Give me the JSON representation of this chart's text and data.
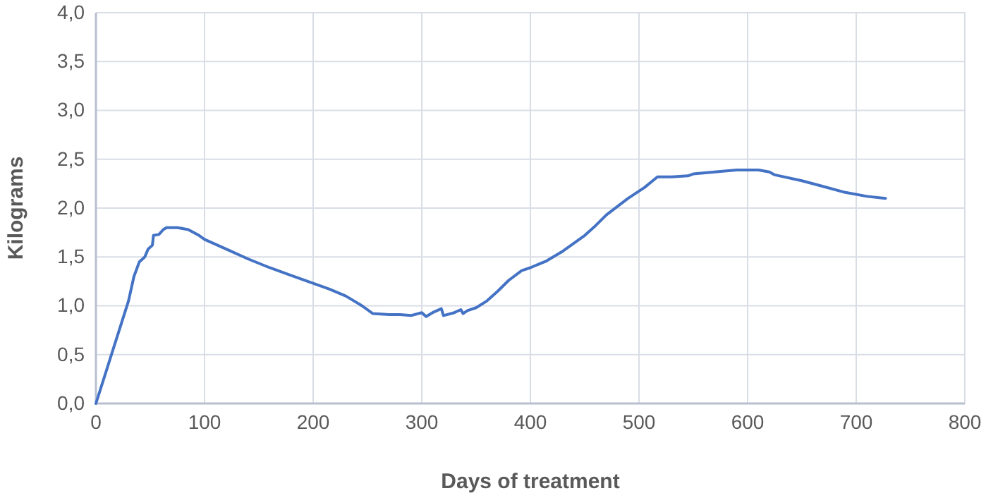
{
  "chart_data": {
    "type": "line",
    "xlabel": "Days of treatment",
    "ylabel": "Kilograms",
    "grid": true,
    "line_style": "solid",
    "marker": "none",
    "xlim": [
      0,
      800
    ],
    "xticks": [
      0,
      100,
      200,
      300,
      400,
      500,
      600,
      700,
      800
    ],
    "ylim": [
      0,
      4
    ],
    "yticks": [
      {
        "value": 0,
        "label": "0,0"
      },
      {
        "value": 0.5,
        "label": "0,5"
      },
      {
        "value": 1,
        "label": "1,0"
      },
      {
        "value": 1.5,
        "label": "1,5"
      },
      {
        "value": 2,
        "label": "2,0"
      },
      {
        "value": 2.5,
        "label": "2,5"
      },
      {
        "value": 3,
        "label": "3,0"
      },
      {
        "value": 3.5,
        "label": "3,5"
      },
      {
        "value": 4,
        "label": "4,0"
      }
    ],
    "series": [
      {
        "color": "#4472c4",
        "x": [
          0,
          10,
          20,
          30,
          35,
          40,
          45,
          48,
          52,
          53,
          58,
          62,
          65,
          75,
          85,
          95,
          100,
          120,
          140,
          160,
          180,
          200,
          215,
          230,
          245,
          255,
          270,
          280,
          290,
          300,
          304,
          310,
          318,
          320,
          330,
          336,
          338,
          342,
          350,
          360,
          370,
          380,
          392,
          400,
          415,
          430,
          450,
          460,
          470,
          490,
          505,
          517,
          530,
          545,
          550,
          570,
          590,
          610,
          620,
          625,
          650,
          670,
          690,
          710,
          727
        ],
        "values": [
          0,
          0.35,
          0.7,
          1.05,
          1.3,
          1.45,
          1.5,
          1.58,
          1.62,
          1.72,
          1.73,
          1.78,
          1.8,
          1.8,
          1.78,
          1.72,
          1.68,
          1.58,
          1.48,
          1.39,
          1.31,
          1.23,
          1.17,
          1.1,
          1.0,
          0.92,
          0.91,
          0.91,
          0.9,
          0.93,
          0.89,
          0.93,
          0.97,
          0.9,
          0.93,
          0.96,
          0.92,
          0.95,
          0.98,
          1.05,
          1.15,
          1.26,
          1.36,
          1.39,
          1.46,
          1.56,
          1.72,
          1.82,
          1.93,
          2.1,
          2.21,
          2.32,
          2.32,
          2.33,
          2.35,
          2.37,
          2.39,
          2.39,
          2.37,
          2.34,
          2.28,
          2.22,
          2.16,
          2.12,
          2.1
        ]
      }
    ]
  }
}
